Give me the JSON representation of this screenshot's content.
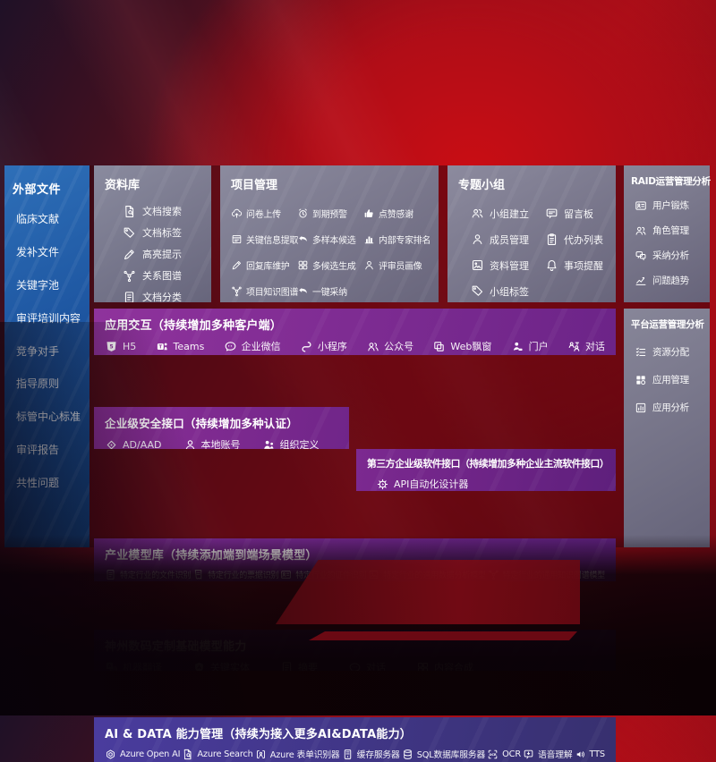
{
  "colors": {
    "bg_red": "#a60e18",
    "sidebar_top": "#2e6fb8",
    "sidebar_bottom": "#123e78",
    "panel_grey": "#7e8196",
    "purple_a": "#8f339c",
    "purple_b": "#6c2488",
    "purple_dark": "#5a1f7a",
    "indigo_a": "#4a3c9e",
    "indigo_b": "#37306f",
    "text": "#ffffff"
  },
  "sidebar": {
    "title": "外部文件",
    "items": [
      {
        "label": "临床文献"
      },
      {
        "label": "发补文件"
      },
      {
        "label": "关键字池"
      },
      {
        "label": "审评培训内容"
      },
      {
        "label": "竞争对手"
      },
      {
        "label": "指导原则"
      },
      {
        "label": "标管中心标准"
      },
      {
        "label": "审评报告"
      },
      {
        "label": "共性问题"
      }
    ]
  },
  "sections": {
    "library": {
      "title": "资料库",
      "items": [
        {
          "icon": "doc-search",
          "label": "文档搜索"
        },
        {
          "icon": "tag",
          "label": "文档标签"
        },
        {
          "icon": "pencil",
          "label": "高亮提示"
        },
        {
          "icon": "graph",
          "label": "关系图谱"
        },
        {
          "icon": "doc",
          "label": "文档分类"
        }
      ]
    },
    "project": {
      "title": "项目管理",
      "col1": [
        {
          "icon": "cloud-up",
          "label": "问卷上传"
        },
        {
          "icon": "frame",
          "label": "关键信息提取"
        },
        {
          "icon": "pencil",
          "label": "回复库维护"
        },
        {
          "icon": "graph",
          "label": "项目知识图谱"
        }
      ],
      "col2": [
        {
          "icon": "alarm",
          "label": "到期预警"
        },
        {
          "icon": "reply",
          "label": "多样本候选"
        },
        {
          "icon": "grid4",
          "label": "多候选生成"
        },
        {
          "icon": "reply",
          "label": "一键采纳"
        }
      ],
      "col3": [
        {
          "icon": "thumb",
          "label": "点赞感谢"
        },
        {
          "icon": "rank",
          "label": "内部专家排名"
        },
        {
          "icon": "person",
          "label": "评审员画像"
        }
      ]
    },
    "group": {
      "title": "专题小组",
      "col1": [
        {
          "icon": "people",
          "label": "小组建立"
        },
        {
          "icon": "person",
          "label": "成员管理"
        },
        {
          "icon": "album",
          "label": "资料管理"
        },
        {
          "icon": "tag",
          "label": "小组标签"
        }
      ],
      "col2": [
        {
          "icon": "bbs",
          "label": "留言板"
        },
        {
          "icon": "clipboard",
          "label": "代办列表"
        },
        {
          "icon": "bell",
          "label": "事项提醒"
        }
      ]
    },
    "raid": {
      "title": "RAID运营管理分析",
      "items": [
        {
          "icon": "idcard",
          "label": "用户锻炼"
        },
        {
          "icon": "people",
          "label": "角色管理"
        },
        {
          "icon": "chat2",
          "label": "采纳分析"
        },
        {
          "icon": "trend",
          "label": "问题趋势"
        }
      ]
    },
    "platform": {
      "title": "平台运营管理分析",
      "items": [
        {
          "icon": "checklist",
          "label": "资源分配"
        },
        {
          "icon": "apps",
          "label": "应用管理"
        },
        {
          "icon": "chart",
          "label": "应用分析"
        }
      ]
    },
    "interaction": {
      "title": "应用交互（持续增加多种客户端）",
      "items": [
        {
          "icon": "h5",
          "label": "H5"
        },
        {
          "icon": "teams",
          "label": "Teams"
        },
        {
          "icon": "wecom",
          "label": "企业微信"
        },
        {
          "icon": "minis",
          "label": "小程序"
        },
        {
          "icon": "official",
          "label": "公众号"
        },
        {
          "icon": "window",
          "label": "Web飘窗"
        },
        {
          "icon": "portal",
          "label": "门户"
        },
        {
          "icon": "dialog",
          "label": "对话"
        }
      ]
    },
    "security": {
      "title": "企业级安全接口（持续增加多种认证）",
      "items": [
        {
          "icon": "diamond",
          "label": "AD/AAD"
        },
        {
          "icon": "person",
          "label": "本地账号"
        },
        {
          "icon": "org",
          "label": "组织定义"
        }
      ]
    },
    "thirdparty": {
      "title": "第三方企业级软件接口（持续增加多种企业主流软件接口）",
      "items": [
        {
          "icon": "gear",
          "label": "API自动化设计器"
        }
      ]
    },
    "models": {
      "title": "产业模型库（持续添加端到端场景模型）",
      "items": [
        {
          "icon": "doc",
          "label": "特定行业的文件识别"
        },
        {
          "icon": "receipt",
          "label": "特定行业的票据识别"
        },
        {
          "icon": "idcard",
          "label": "特定行业的证件识别"
        },
        {
          "icon": "image",
          "label": "特定行业的通用数据分析模型"
        },
        {
          "icon": "graph",
          "label": "特定行业的通用知识图谱模型"
        }
      ]
    },
    "foundation": {
      "title": "神州数码定制基础模型能力",
      "items": [
        {
          "icon": "translate",
          "label": "机器翻译"
        },
        {
          "icon": "abadge",
          "label": "关键实体"
        },
        {
          "icon": "doc",
          "label": "摘要"
        },
        {
          "icon": "bubble",
          "label": "对话"
        },
        {
          "icon": "grid4",
          "label": "内容合成"
        }
      ]
    },
    "aidata": {
      "title": "AI & DATA 能力管理（持续为接入更多AI&DATA能力）",
      "items": [
        {
          "icon": "openai",
          "label": "Azure Open AI"
        },
        {
          "icon": "doc-search",
          "label": "Azure Search"
        },
        {
          "icon": "brackets",
          "label": "Azure 表单识别器"
        },
        {
          "icon": "server",
          "label": "缓存服务器"
        },
        {
          "icon": "db",
          "label": "SQL数据库服务器"
        },
        {
          "icon": "ocr",
          "label": "OCR"
        },
        {
          "icon": "speech",
          "label": "语音理解"
        },
        {
          "icon": "tts",
          "label": "TTS"
        }
      ]
    }
  }
}
